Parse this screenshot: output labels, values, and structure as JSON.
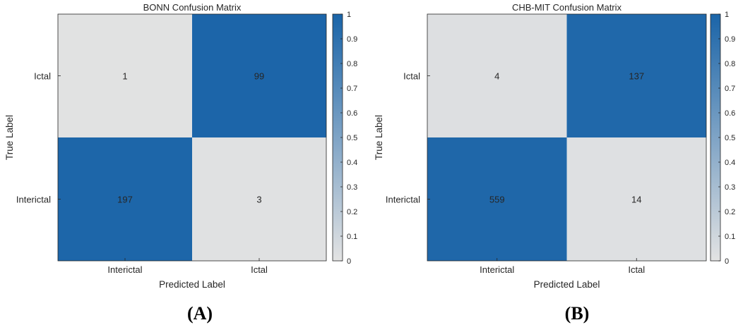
{
  "chart_data": [
    {
      "type": "heatmap",
      "panel_label": "(A)",
      "title": "BONN Confusion Matrix",
      "xlabel": "Predicted Label",
      "ylabel": "True Label",
      "x_categories": [
        "Interictal",
        "Ictal"
      ],
      "y_categories": [
        "Ictal",
        "Interictal"
      ],
      "counts": [
        [
          1,
          99
        ],
        [
          197,
          3
        ]
      ],
      "normalized": [
        [
          0.01,
          0.99
        ],
        [
          0.985,
          0.015
        ]
      ],
      "colorbar": {
        "min": 0,
        "max": 1,
        "ticks": [
          "0",
          "0.1",
          "0.2",
          "0.3",
          "0.4",
          "0.5",
          "0.6",
          "0.7",
          "0.8",
          "0.9",
          "1"
        ]
      }
    },
    {
      "type": "heatmap",
      "panel_label": "(B)",
      "title": "CHB-MIT Confusion Matrix",
      "xlabel": "Predicted Label",
      "ylabel": "True Label",
      "x_categories": [
        "Interictal",
        "Ictal"
      ],
      "y_categories": [
        "Ictal",
        "Interictal"
      ],
      "counts": [
        [
          4,
          137
        ],
        [
          559,
          14
        ]
      ],
      "normalized": [
        [
          0.028,
          0.972
        ],
        [
          0.976,
          0.024
        ]
      ],
      "colorbar": {
        "min": 0,
        "max": 1,
        "ticks": [
          "0",
          "0.1",
          "0.2",
          "0.3",
          "0.4",
          "0.5",
          "0.6",
          "0.7",
          "0.8",
          "0.9",
          "1"
        ]
      }
    }
  ],
  "colors": {
    "high": "#1a64a8",
    "low": "#e3e3e3",
    "axis": "#262626"
  }
}
